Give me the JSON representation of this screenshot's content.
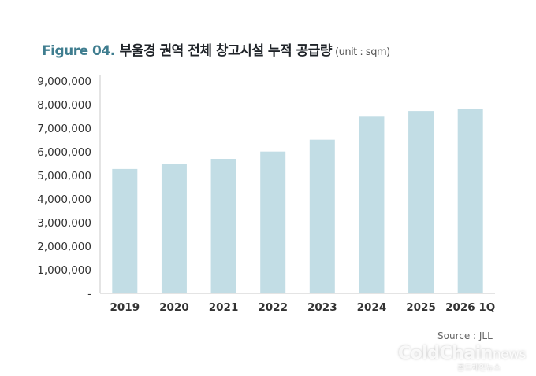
{
  "chart_data": {
    "type": "bar",
    "figure_label": "Figure 04.",
    "title": "부울경 권역 전체 창고시설 누적 공급량",
    "unit": "(unit : sqm)",
    "categories": [
      "2019",
      "2020",
      "2021",
      "2022",
      "2023",
      "2024",
      "2025",
      "2026 1Q"
    ],
    "values": [
      5270000,
      5470000,
      5700000,
      6010000,
      6510000,
      7490000,
      7730000,
      7830000
    ],
    "ylim": [
      0,
      9000000
    ],
    "yticks": [
      "-",
      "1,000,000",
      "2,000,000",
      "3,000,000",
      "4,000,000",
      "5,000,000",
      "6,000,000",
      "7,000,000",
      "8,000,000",
      "9,000,000"
    ],
    "grid": false,
    "bar_color": "#c2dde5",
    "source": "Source : JLL"
  },
  "watermark": {
    "brand": "ColdChain",
    "suffix": "news",
    "tagline": "콜드체인뉴스"
  }
}
